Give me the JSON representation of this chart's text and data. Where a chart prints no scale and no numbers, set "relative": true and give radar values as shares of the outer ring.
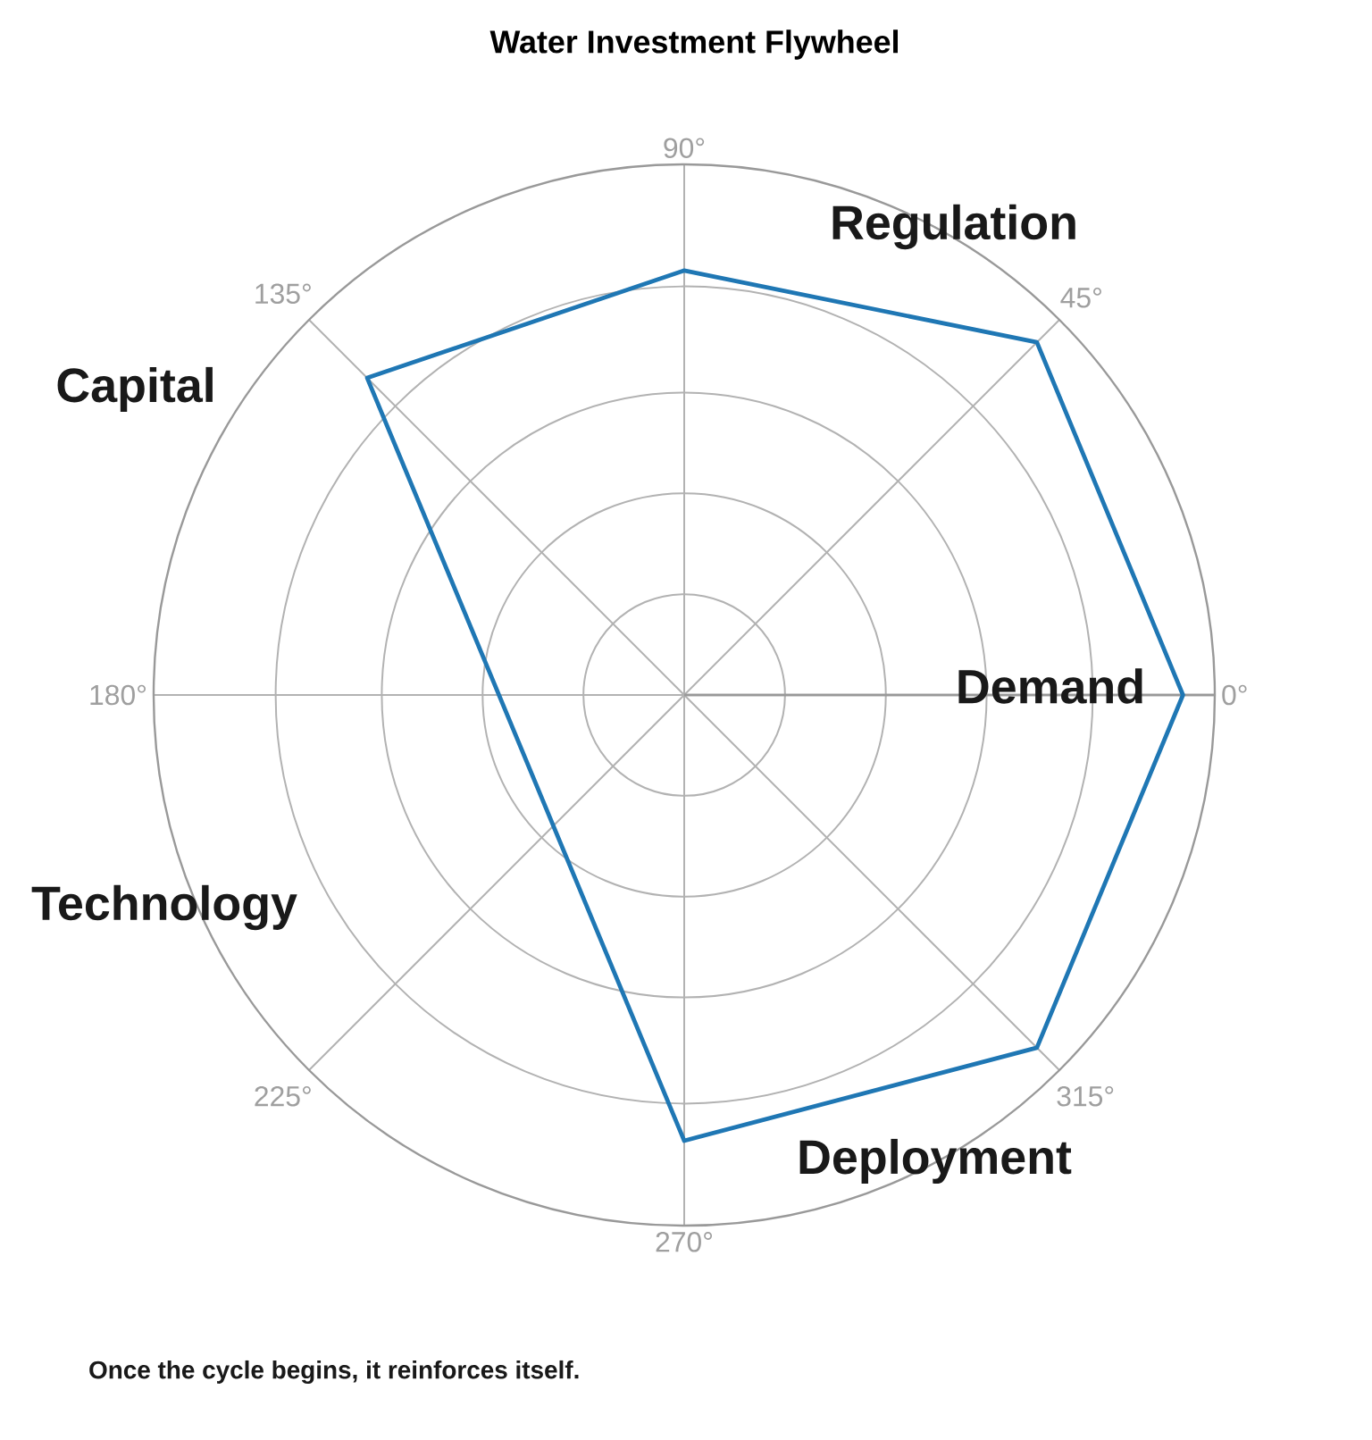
{
  "chart_data": {
    "type": "radar",
    "title": "Water Investment Flywheel",
    "relative": true,
    "grid": true,
    "categories": [
      "90°",
      "45°",
      "0°",
      "315°",
      "270°",
      "225°",
      "180°",
      "135°"
    ],
    "series": [
      {
        "color": "#1f77b4",
        "values": [
          0.8,
          0.94,
          0.94,
          0.94,
          0.84,
          null,
          null,
          0.845
        ]
      }
    ],
    "annotations": [
      "Regulation",
      "Capital",
      "Demand",
      "Technology",
      "Deployment",
      "Once the cycle begins, it reinforces itself."
    ]
  }
}
